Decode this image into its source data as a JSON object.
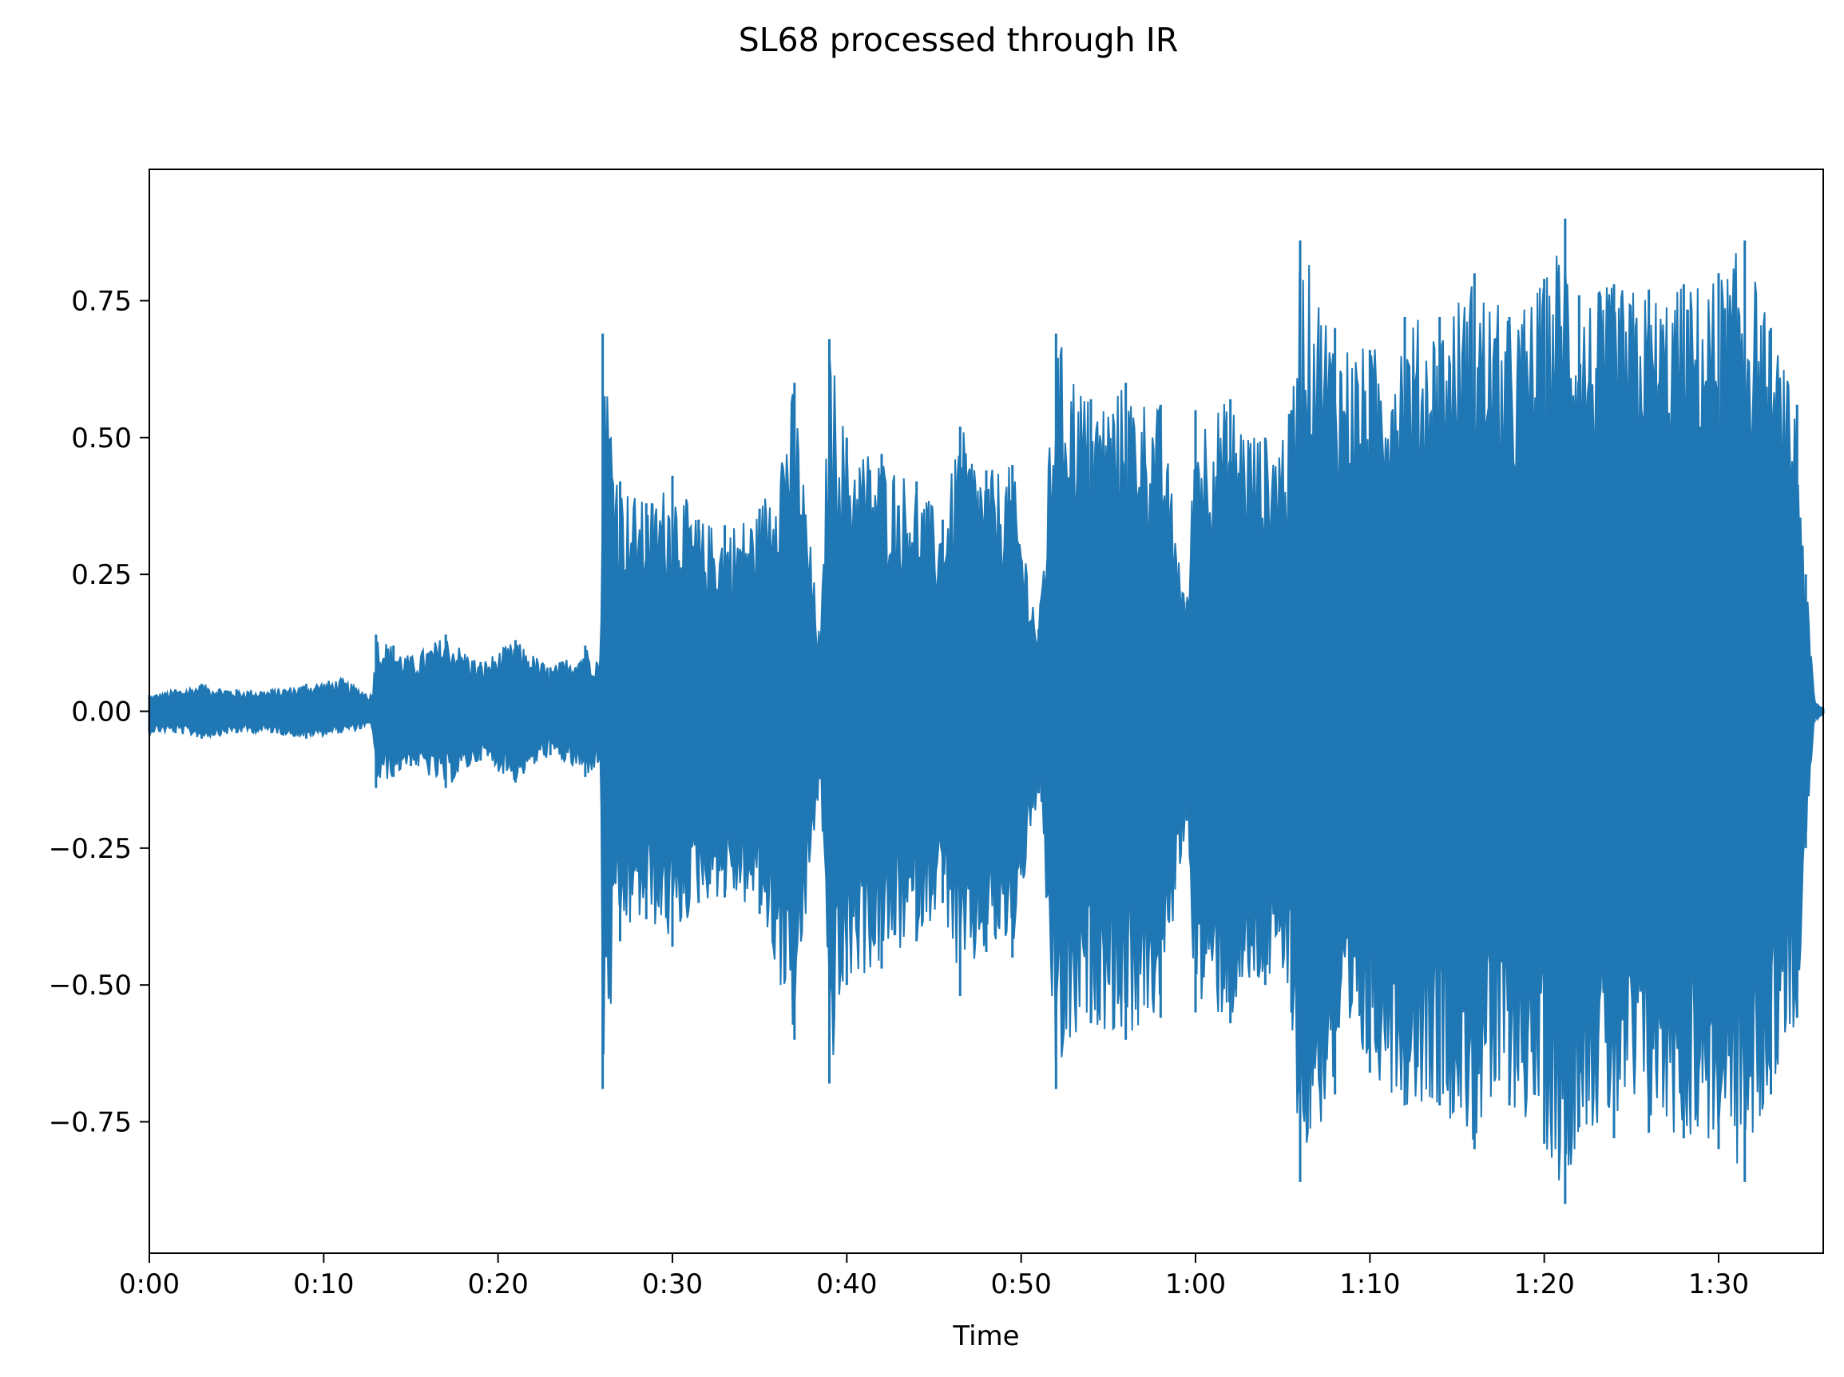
{
  "chart_data": {
    "type": "line",
    "title": "SL68 processed through IR",
    "xlabel": "Time",
    "ylabel": "",
    "x_unit": "seconds",
    "xlim": [
      0,
      96
    ],
    "ylim": [
      -0.99,
      0.99
    ],
    "x_ticks": [
      {
        "value": 0,
        "label": "0:00"
      },
      {
        "value": 10,
        "label": "0:10"
      },
      {
        "value": 20,
        "label": "0:20"
      },
      {
        "value": 30,
        "label": "0:30"
      },
      {
        "value": 40,
        "label": "0:40"
      },
      {
        "value": 50,
        "label": "0:50"
      },
      {
        "value": 60,
        "label": "1:00"
      },
      {
        "value": 70,
        "label": "1:10"
      },
      {
        "value": 80,
        "label": "1:20"
      },
      {
        "value": 90,
        "label": "1:30"
      }
    ],
    "y_ticks": [
      {
        "value": 0.75,
        "label": "0.75"
      },
      {
        "value": 0.5,
        "label": "0.50"
      },
      {
        "value": 0.25,
        "label": "0.25"
      },
      {
        "value": 0.0,
        "label": "0.00"
      },
      {
        "value": -0.25,
        "label": "−0.25"
      },
      {
        "value": -0.5,
        "label": "−0.50"
      },
      {
        "value": -0.75,
        "label": "−0.75"
      }
    ],
    "grid": false,
    "legend": "none",
    "series": [
      {
        "color": "#1f77b4",
        "envelope_columns": [
          "time_s",
          "min_amplitude",
          "max_amplitude"
        ],
        "envelope": [
          [
            0.0,
            -0.04,
            0.03
          ],
          [
            1.5,
            -0.04,
            0.04
          ],
          [
            3.0,
            -0.05,
            0.05
          ],
          [
            5.0,
            -0.04,
            0.04
          ],
          [
            7.0,
            -0.04,
            0.04
          ],
          [
            9.0,
            -0.05,
            0.05
          ],
          [
            11.0,
            -0.04,
            0.06
          ],
          [
            12.8,
            -0.03,
            0.03
          ],
          [
            13.0,
            -0.14,
            0.14
          ],
          [
            14.0,
            -0.12,
            0.12
          ],
          [
            15.0,
            -0.1,
            0.1
          ],
          [
            17.0,
            -0.14,
            0.14
          ],
          [
            19.0,
            -0.09,
            0.09
          ],
          [
            21.0,
            -0.13,
            0.13
          ],
          [
            23.0,
            -0.08,
            0.08
          ],
          [
            25.0,
            -0.12,
            0.12
          ],
          [
            25.9,
            -0.1,
            0.1
          ],
          [
            26.0,
            -0.69,
            0.69
          ],
          [
            27.0,
            -0.42,
            0.42
          ],
          [
            28.5,
            -0.38,
            0.38
          ],
          [
            30.0,
            -0.43,
            0.43
          ],
          [
            31.5,
            -0.35,
            0.35
          ],
          [
            33.0,
            -0.34,
            0.34
          ],
          [
            35.0,
            -0.37,
            0.37
          ],
          [
            37.0,
            -0.6,
            0.6
          ],
          [
            38.5,
            -0.12,
            0.12
          ],
          [
            39.0,
            -0.68,
            0.68
          ],
          [
            40.0,
            -0.5,
            0.5
          ],
          [
            42.0,
            -0.47,
            0.47
          ],
          [
            44.0,
            -0.42,
            0.42
          ],
          [
            45.5,
            -0.35,
            0.35
          ],
          [
            46.5,
            -0.52,
            0.52
          ],
          [
            48.0,
            -0.44,
            0.44
          ],
          [
            49.5,
            -0.45,
            0.45
          ],
          [
            51.0,
            -0.15,
            0.15
          ],
          [
            52.0,
            -0.69,
            0.69
          ],
          [
            54.0,
            -0.57,
            0.57
          ],
          [
            56.0,
            -0.6,
            0.6
          ],
          [
            58.0,
            -0.56,
            0.56
          ],
          [
            59.5,
            -0.2,
            0.2
          ],
          [
            60.0,
            -0.55,
            0.55
          ],
          [
            62.0,
            -0.57,
            0.57
          ],
          [
            64.0,
            -0.5,
            0.5
          ],
          [
            65.5,
            -0.55,
            0.55
          ],
          [
            66.0,
            -0.86,
            0.86
          ],
          [
            68.0,
            -0.7,
            0.7
          ],
          [
            70.0,
            -0.66,
            0.66
          ],
          [
            72.0,
            -0.72,
            0.72
          ],
          [
            74.0,
            -0.72,
            0.72
          ],
          [
            76.0,
            -0.8,
            0.8
          ],
          [
            78.0,
            -0.72,
            0.72
          ],
          [
            80.0,
            -0.79,
            0.79
          ],
          [
            81.2,
            -0.9,
            0.9
          ],
          [
            82.0,
            -0.76,
            0.76
          ],
          [
            84.0,
            -0.78,
            0.78
          ],
          [
            86.0,
            -0.77,
            0.77
          ],
          [
            88.0,
            -0.78,
            0.78
          ],
          [
            90.0,
            -0.8,
            0.8
          ],
          [
            91.5,
            -0.86,
            0.86
          ],
          [
            93.0,
            -0.7,
            0.7
          ],
          [
            94.5,
            -0.56,
            0.56
          ],
          [
            95.0,
            -0.25,
            0.25
          ],
          [
            95.5,
            -0.02,
            0.02
          ],
          [
            96.0,
            -0.005,
            0.005
          ]
        ]
      }
    ]
  }
}
